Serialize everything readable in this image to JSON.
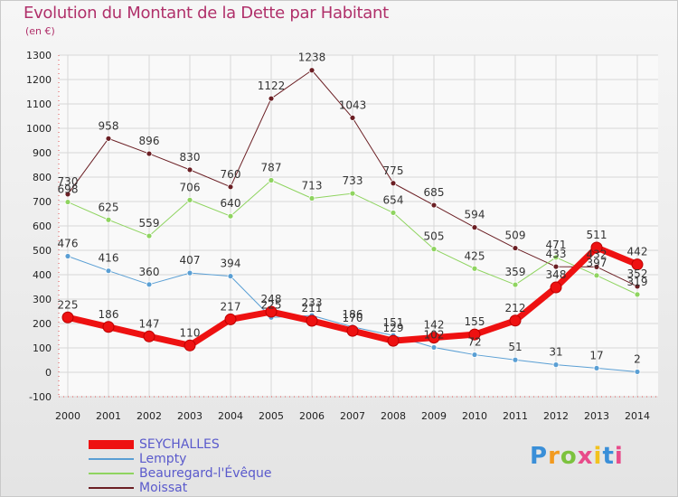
{
  "title": "Evolution du Montant de la Dette par Habitant",
  "unit": "(en €)",
  "brand": "Proxiti",
  "colors": {
    "title": "#b0306a",
    "legend_text": "#5a5acc"
  },
  "chart_data": {
    "type": "line",
    "title": "Evolution du Montant de la Dette par Habitant",
    "ylabel": "(en €)",
    "ylim": [
      -100,
      1300
    ],
    "yticks": [
      -100,
      0,
      100,
      200,
      300,
      400,
      500,
      600,
      700,
      800,
      900,
      1000,
      1100,
      1200,
      1300
    ],
    "x": [
      "2000",
      "2001",
      "2002",
      "2003",
      "2004",
      "2005",
      "2006",
      "2007",
      "2008",
      "2009",
      "2010",
      "2011",
      "2012",
      "2013",
      "2014"
    ],
    "grid": true,
    "legend_position": "bottom-left",
    "series": [
      {
        "name": "Moissat",
        "color": "#6b1f24",
        "width": 1,
        "values": [
          730,
          958,
          896,
          830,
          760,
          1122,
          1238,
          1043,
          775,
          685,
          594,
          509,
          433,
          432,
          352
        ]
      },
      {
        "name": "Beauregard-l'Évêque",
        "color": "#8fd460",
        "width": 1,
        "values": [
          698,
          625,
          559,
          706,
          640,
          787,
          713,
          733,
          654,
          505,
          425,
          359,
          471,
          397,
          319
        ]
      },
      {
        "name": "Lempty",
        "color": "#5a9fd4",
        "width": 1,
        "values": [
          476,
          416,
          360,
          407,
          394,
          225,
          233,
          186,
          151,
          102,
          72,
          51,
          31,
          17,
          2
        ]
      },
      {
        "name": "SEYCHALLES",
        "color": "#ee1111",
        "width": 7,
        "values": [
          225,
          186,
          147,
          110,
          217,
          248,
          211,
          170,
          129,
          142,
          155,
          212,
          348,
          511,
          442
        ]
      }
    ],
    "legend": [
      "SEYCHALLES",
      "Lempty",
      "Beauregard-l'Évêque",
      "Moissat"
    ]
  }
}
